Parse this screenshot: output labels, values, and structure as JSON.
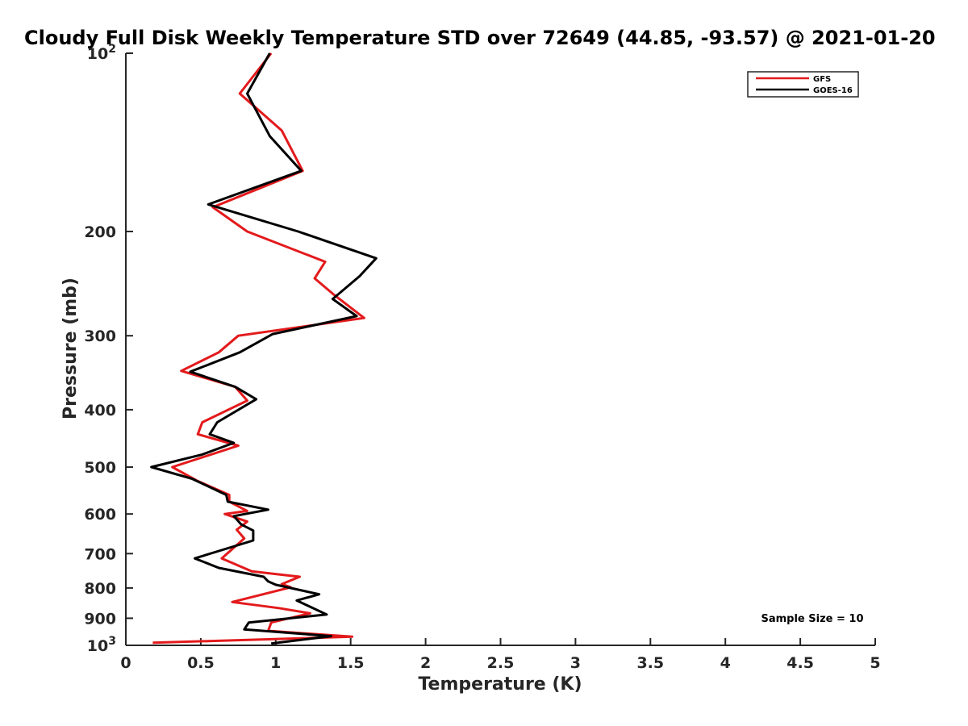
{
  "chart_data": {
    "type": "line",
    "title": "Cloudy Full Disk Weekly Temperature STD over 72649 (44.85, -93.57) @ 2021-01-20",
    "xlabel": "Temperature (K)",
    "ylabel": "Pressure (mb)",
    "xlim": [
      0,
      5
    ],
    "ylim": [
      1000,
      100
    ],
    "y_scale": "log",
    "y_reversed": true,
    "x_ticks": [
      "0",
      "0.5",
      "1",
      "1.5",
      "2",
      "2.5",
      "3",
      "3.5",
      "4",
      "4.5",
      "5"
    ],
    "y_ticks": [
      {
        "value": 100,
        "base": "10",
        "exp": "2"
      },
      {
        "value": 200,
        "label": "200"
      },
      {
        "value": 300,
        "label": "300"
      },
      {
        "value": 400,
        "label": "400"
      },
      {
        "value": 500,
        "label": "500"
      },
      {
        "value": 600,
        "label": "600"
      },
      {
        "value": 700,
        "label": "700"
      },
      {
        "value": 800,
        "label": "800"
      },
      {
        "value": 900,
        "label": "900"
      },
      {
        "value": 1000,
        "base": "10",
        "exp": "3"
      }
    ],
    "grid": false,
    "legend_position": "top-right",
    "annotation": "Sample Size = 10",
    "series": [
      {
        "name": "GFS",
        "color": "#e31a1c",
        "points": [
          {
            "x": 0.97,
            "y": 100
          },
          {
            "x": 0.76,
            "y": 117
          },
          {
            "x": 1.04,
            "y": 135
          },
          {
            "x": 1.18,
            "y": 158
          },
          {
            "x": 0.58,
            "y": 182
          },
          {
            "x": 0.81,
            "y": 200
          },
          {
            "x": 1.33,
            "y": 225
          },
          {
            "x": 1.26,
            "y": 240
          },
          {
            "x": 1.39,
            "y": 256
          },
          {
            "x": 1.59,
            "y": 280
          },
          {
            "x": 0.75,
            "y": 300
          },
          {
            "x": 0.62,
            "y": 320
          },
          {
            "x": 0.37,
            "y": 344
          },
          {
            "x": 0.73,
            "y": 366
          },
          {
            "x": 0.81,
            "y": 386
          },
          {
            "x": 0.51,
            "y": 420
          },
          {
            "x": 0.48,
            "y": 440
          },
          {
            "x": 0.75,
            "y": 460
          },
          {
            "x": 0.31,
            "y": 500
          },
          {
            "x": 0.48,
            "y": 528
          },
          {
            "x": 0.69,
            "y": 557
          },
          {
            "x": 0.69,
            "y": 572
          },
          {
            "x": 0.81,
            "y": 593
          },
          {
            "x": 0.66,
            "y": 600
          },
          {
            "x": 0.81,
            "y": 618
          },
          {
            "x": 0.74,
            "y": 638
          },
          {
            "x": 0.79,
            "y": 660
          },
          {
            "x": 0.64,
            "y": 713
          },
          {
            "x": 0.84,
            "y": 750
          },
          {
            "x": 1.16,
            "y": 766
          },
          {
            "x": 1.04,
            "y": 788
          },
          {
            "x": 1.1,
            "y": 798
          },
          {
            "x": 0.71,
            "y": 845
          },
          {
            "x": 1.02,
            "y": 865
          },
          {
            "x": 1.23,
            "y": 883
          },
          {
            "x": 0.97,
            "y": 915
          },
          {
            "x": 0.95,
            "y": 945
          },
          {
            "x": 1.51,
            "y": 967
          },
          {
            "x": 0.18,
            "y": 990
          }
        ]
      },
      {
        "name": "GOES-16",
        "color": "#000000",
        "points": [
          {
            "x": 0.96,
            "y": 100
          },
          {
            "x": 0.81,
            "y": 117
          },
          {
            "x": 0.96,
            "y": 138
          },
          {
            "x": 1.17,
            "y": 158
          },
          {
            "x": 0.55,
            "y": 180
          },
          {
            "x": 1.15,
            "y": 200
          },
          {
            "x": 1.67,
            "y": 222
          },
          {
            "x": 1.56,
            "y": 238
          },
          {
            "x": 1.38,
            "y": 260
          },
          {
            "x": 1.54,
            "y": 278
          },
          {
            "x": 0.98,
            "y": 298
          },
          {
            "x": 0.76,
            "y": 320
          },
          {
            "x": 0.43,
            "y": 345
          },
          {
            "x": 0.73,
            "y": 366
          },
          {
            "x": 0.87,
            "y": 384
          },
          {
            "x": 0.61,
            "y": 420
          },
          {
            "x": 0.56,
            "y": 440
          },
          {
            "x": 0.72,
            "y": 455
          },
          {
            "x": 0.51,
            "y": 476
          },
          {
            "x": 0.17,
            "y": 500
          },
          {
            "x": 0.44,
            "y": 523
          },
          {
            "x": 0.67,
            "y": 557
          },
          {
            "x": 0.68,
            "y": 572
          },
          {
            "x": 0.95,
            "y": 590
          },
          {
            "x": 0.72,
            "y": 605
          },
          {
            "x": 0.77,
            "y": 625
          },
          {
            "x": 0.85,
            "y": 640
          },
          {
            "x": 0.85,
            "y": 665
          },
          {
            "x": 0.46,
            "y": 713
          },
          {
            "x": 0.62,
            "y": 740
          },
          {
            "x": 0.92,
            "y": 766
          },
          {
            "x": 0.95,
            "y": 780
          },
          {
            "x": 1.0,
            "y": 790
          },
          {
            "x": 1.29,
            "y": 820
          },
          {
            "x": 1.14,
            "y": 840
          },
          {
            "x": 1.34,
            "y": 887
          },
          {
            "x": 0.82,
            "y": 915
          },
          {
            "x": 0.79,
            "y": 940
          },
          {
            "x": 1.37,
            "y": 965
          },
          {
            "x": 0.97,
            "y": 993
          }
        ]
      }
    ]
  }
}
